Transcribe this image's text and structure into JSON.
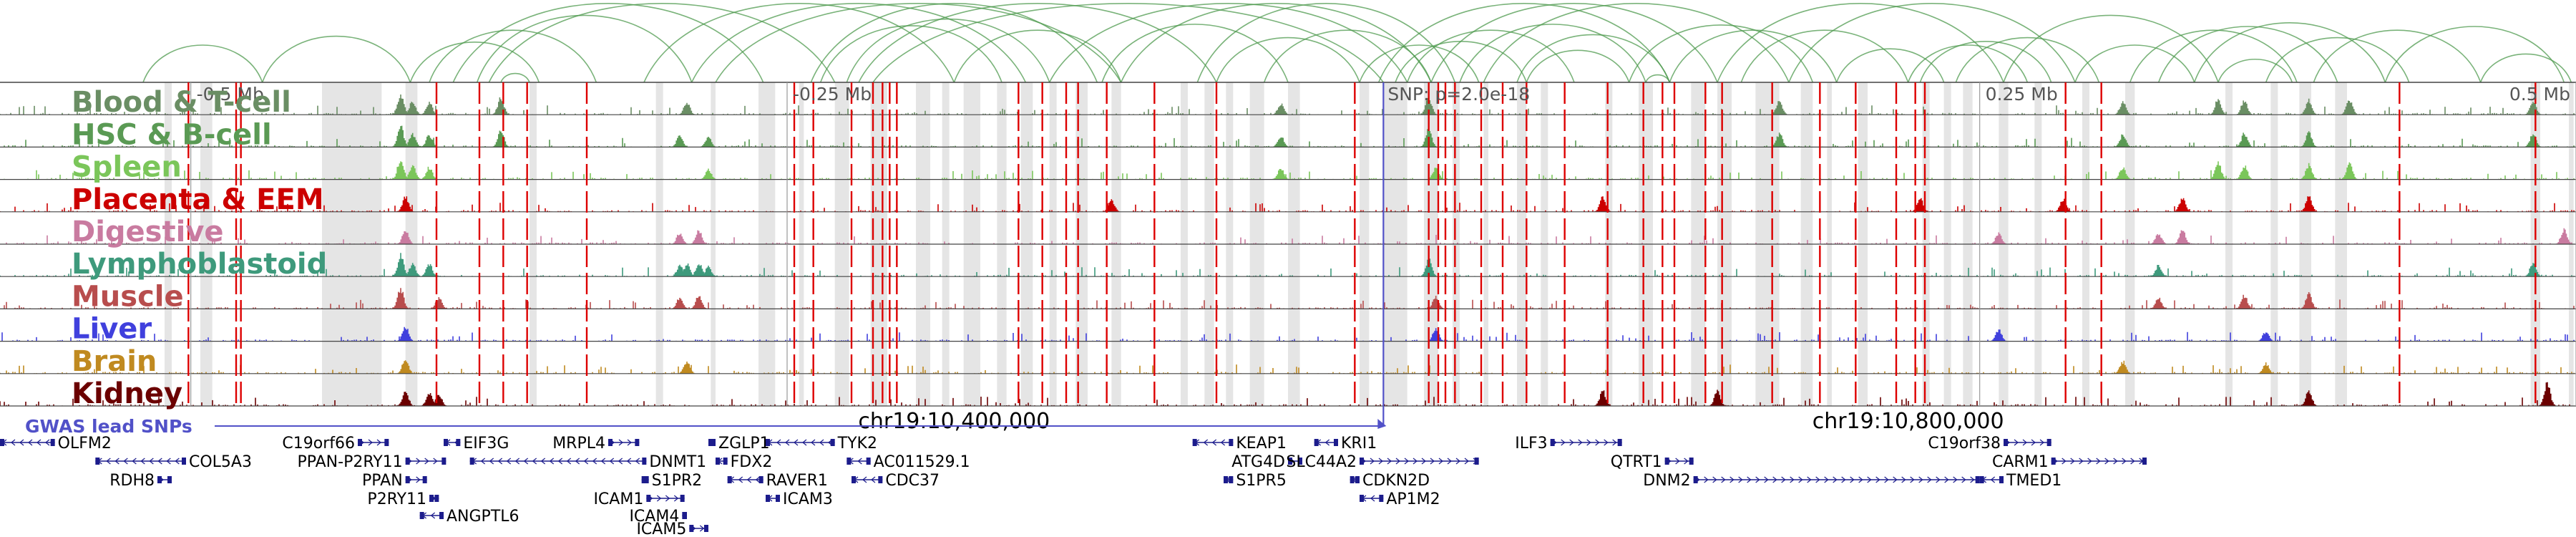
{
  "chart_data": {
    "type": "genome-browser",
    "region": {
      "chrom": "chr19",
      "start": 10000000,
      "end": 11080000
    },
    "center": 10580000,
    "coordinate_labels": [
      {
        "label": "chr19:10,400,000",
        "pos": 10400000
      },
      {
        "label": "chr19:10,800,000",
        "pos": 10800000
      }
    ],
    "ticks": [
      {
        "label": "-0.5 Mb",
        "pos": 10080000
      },
      {
        "label": "-0.25 Mb",
        "pos": 10330000
      },
      {
        "label": "0.25 Mb",
        "pos": 10830000
      },
      {
        "label": "0.5 Mb",
        "pos": 11080000
      }
    ],
    "lead_snp": {
      "label": "SNP: p=2.0e-18",
      "pos": 10580000
    },
    "gwas_label": "GWAS lead SNPs",
    "tracks": [
      {
        "name": "Blood & T-cell",
        "color": "#6a8e64"
      },
      {
        "name": "HSC & B-cell",
        "color": "#5a9a54"
      },
      {
        "name": "Spleen",
        "color": "#7bc65a"
      },
      {
        "name": "Placenta & EEM",
        "color": "#cc0000"
      },
      {
        "name": "Digestive",
        "color": "#c97ba0"
      },
      {
        "name": "Lymphoblastoid",
        "color": "#3e9a7c"
      },
      {
        "name": "Muscle",
        "color": "#b84d4d"
      },
      {
        "name": "Liver",
        "color": "#4040dd"
      },
      {
        "name": "Brain",
        "color": "#c08a20"
      },
      {
        "name": "Kidney",
        "color": "#6b0000"
      }
    ],
    "highlight_regions": [
      [
        10069000,
        10072000
      ],
      [
        10084000,
        10089000
      ],
      [
        10135000,
        10160000
      ],
      [
        10170000,
        10175000
      ],
      [
        10222000,
        10225000
      ],
      [
        10275000,
        10278000
      ],
      [
        10298000,
        10300000
      ],
      [
        10318000,
        10325000
      ],
      [
        10335000,
        10337000
      ],
      [
        10350000,
        10356000
      ],
      [
        10365000,
        10372000
      ],
      [
        10384000,
        10390000
      ],
      [
        10395000,
        10398000
      ],
      [
        10404000,
        10411000
      ],
      [
        10418000,
        10422000
      ],
      [
        10428000,
        10433000
      ],
      [
        10440000,
        10443000
      ],
      [
        10451000,
        10456000
      ],
      [
        10466000,
        10470000
      ],
      [
        10495000,
        10498000
      ],
      [
        10505000,
        10509000
      ],
      [
        10514000,
        10517000
      ],
      [
        10524000,
        10530000
      ],
      [
        10540000,
        10545000
      ],
      [
        10570000,
        10574000
      ],
      [
        10580000,
        10590000
      ],
      [
        10597000,
        10603000
      ],
      [
        10609000,
        10612000
      ],
      [
        10622000,
        10624000
      ],
      [
        10636000,
        10640000
      ],
      [
        10646000,
        10649000
      ],
      [
        10673000,
        10676000
      ],
      [
        10687000,
        10693000
      ],
      [
        10709000,
        10715000
      ],
      [
        10720000,
        10726000
      ],
      [
        10736000,
        10746000
      ],
      [
        10755000,
        10760000
      ],
      [
        10766000,
        10768000
      ],
      [
        10779000,
        10783000
      ],
      [
        10806000,
        10809000
      ],
      [
        10815000,
        10818000
      ],
      [
        10823000,
        10827000
      ],
      [
        10838000,
        10842000
      ],
      [
        10853000,
        10856000
      ],
      [
        10873000,
        10876000
      ],
      [
        10891000,
        10895000
      ],
      [
        10933000,
        10936000
      ],
      [
        10952000,
        10955000
      ],
      [
        10964000,
        10969000
      ],
      [
        10979000,
        10984000
      ],
      [
        11061000,
        11065000
      ],
      [
        11077000,
        11079000
      ]
    ],
    "red_lines": [
      10079000,
      10099000,
      10101000,
      10183000,
      10201000,
      10211000,
      10221000,
      10246000,
      10333000,
      10341000,
      10357000,
      10366000,
      10370000,
      10373000,
      10376000,
      10427000,
      10437000,
      10447000,
      10452000,
      10464000,
      10484000,
      10510000,
      10568000,
      10599000,
      10603000,
      10606000,
      10610000,
      10621000,
      10630000,
      10640000,
      10656000,
      10674000,
      10689000,
      10697000,
      10702000,
      10715000,
      10722000,
      10743000,
      10763000,
      10778000,
      10795000,
      10803000,
      10807000,
      10866000,
      10881000,
      11006000,
      11063000
    ],
    "loops": [
      [
        10060000,
        10110000
      ],
      [
        10110000,
        10172000
      ],
      [
        10172000,
        10226000
      ],
      [
        10180000,
        10250000
      ],
      [
        10190000,
        10320000
      ],
      [
        10200000,
        10290000
      ],
      [
        10205000,
        10350000
      ],
      [
        10210000,
        10222000
      ],
      [
        10270000,
        10400000
      ],
      [
        10290000,
        10430000
      ],
      [
        10300000,
        10470000
      ],
      [
        10340000,
        10460000
      ],
      [
        10344000,
        10420000
      ],
      [
        10355000,
        10440000
      ],
      [
        10360000,
        10510000
      ],
      [
        10366000,
        10580000
      ],
      [
        10400000,
        10470000
      ],
      [
        10440000,
        10590000
      ],
      [
        10462000,
        10540000
      ],
      [
        10470000,
        10600000
      ],
      [
        10502000,
        10610000
      ],
      [
        10510000,
        10570000
      ],
      [
        10530000,
        10600000
      ],
      [
        10570000,
        10620000
      ],
      [
        10578000,
        10700000
      ],
      [
        10585000,
        10640000
      ],
      [
        10590000,
        10660000
      ],
      [
        10600000,
        10720000
      ],
      [
        10612000,
        10690000
      ],
      [
        10622000,
        10750000
      ],
      [
        10636000,
        10700000
      ],
      [
        10640000,
        10683000
      ],
      [
        10683000,
        10760000
      ],
      [
        10690000,
        10700000
      ],
      [
        10700000,
        10770000
      ],
      [
        10720000,
        10840000
      ],
      [
        10730000,
        10800000
      ],
      [
        10750000,
        10870000
      ],
      [
        10770000,
        10815000
      ],
      [
        10800000,
        10850000
      ],
      [
        10805000,
        10860000
      ],
      [
        10820000,
        10880000
      ],
      [
        10840000,
        10930000
      ],
      [
        10870000,
        10920000
      ],
      [
        10893000,
        10963000
      ],
      [
        10905000,
        10980000
      ],
      [
        10920000,
        11000000
      ],
      [
        10930000,
        10961000
      ],
      [
        10950000,
        11010000
      ],
      [
        10970000,
        11040000
      ],
      [
        11000000,
        11075000
      ],
      [
        11040000,
        11078000
      ]
    ],
    "peaks": [
      {
        "pos": 10168000,
        "height": 0.85,
        "tracks": [
          0,
          1,
          2,
          5,
          6
        ]
      },
      {
        "pos": 10170000,
        "height": 0.6,
        "tracks": [
          3,
          4,
          7,
          8,
          9
        ]
      },
      {
        "pos": 10173000,
        "height": 0.55,
        "tracks": [
          0,
          1,
          2,
          5
        ]
      },
      {
        "pos": 10180000,
        "height": 0.5,
        "tracks": [
          0,
          1,
          2,
          5,
          9
        ]
      },
      {
        "pos": 10184000,
        "height": 0.45,
        "tracks": [
          6,
          9
        ]
      },
      {
        "pos": 10210000,
        "height": 0.7,
        "tracks": [
          0,
          1
        ]
      },
      {
        "pos": 10285000,
        "height": 0.45,
        "tracks": [
          1,
          4,
          5,
          6
        ]
      },
      {
        "pos": 10288000,
        "height": 0.5,
        "tracks": [
          0,
          5,
          8
        ]
      },
      {
        "pos": 10293000,
        "height": 0.55,
        "tracks": [
          4,
          5,
          6
        ]
      },
      {
        "pos": 10297000,
        "height": 0.4,
        "tracks": [
          1,
          2,
          5
        ]
      },
      {
        "pos": 10466000,
        "height": 0.5,
        "tracks": [
          3
        ]
      },
      {
        "pos": 10537000,
        "height": 0.45,
        "tracks": [
          0,
          1,
          2
        ]
      },
      {
        "pos": 10599000,
        "height": 0.7,
        "tracks": [
          0,
          1,
          5
        ]
      },
      {
        "pos": 10602000,
        "height": 0.5,
        "tracks": [
          2,
          6,
          7
        ]
      },
      {
        "pos": 10672000,
        "height": 0.6,
        "tracks": [
          3,
          9
        ]
      },
      {
        "pos": 10720000,
        "height": 0.6,
        "tracks": [
          9
        ]
      },
      {
        "pos": 10746000,
        "height": 0.55,
        "tracks": [
          0,
          1
        ]
      },
      {
        "pos": 10805000,
        "height": 0.55,
        "tracks": [
          3
        ]
      },
      {
        "pos": 10838000,
        "height": 0.45,
        "tracks": [
          4,
          7
        ]
      },
      {
        "pos": 10865000,
        "height": 0.5,
        "tracks": [
          3
        ]
      },
      {
        "pos": 10890000,
        "height": 0.5,
        "tracks": [
          0,
          1,
          2,
          8
        ]
      },
      {
        "pos": 10905000,
        "height": 0.45,
        "tracks": [
          4,
          5,
          6
        ]
      },
      {
        "pos": 10915000,
        "height": 0.55,
        "tracks": [
          3,
          4
        ]
      },
      {
        "pos": 10930000,
        "height": 0.65,
        "tracks": [
          0,
          2
        ]
      },
      {
        "pos": 10941000,
        "height": 0.55,
        "tracks": [
          0,
          1,
          2,
          6
        ]
      },
      {
        "pos": 10950000,
        "height": 0.4,
        "tracks": [
          7,
          8
        ]
      },
      {
        "pos": 10968000,
        "height": 0.6,
        "tracks": [
          0,
          1,
          2,
          3,
          6,
          9
        ]
      },
      {
        "pos": 10985000,
        "height": 0.65,
        "tracks": [
          0,
          2
        ]
      },
      {
        "pos": 11062000,
        "height": 0.55,
        "tracks": [
          0,
          1,
          5
        ]
      },
      {
        "pos": 11068000,
        "height": 0.9,
        "tracks": [
          9
        ]
      },
      {
        "pos": 11075000,
        "height": 0.6,
        "tracks": [
          4
        ]
      }
    ],
    "genes": [
      {
        "name": "OLFM2",
        "start": 10000000,
        "end": 10023000,
        "strand": "-",
        "row": 0
      },
      {
        "name": "COL5A3",
        "start": 10040000,
        "end": 10078000,
        "strand": "-",
        "row": 1
      },
      {
        "name": "RDH8",
        "start": 10066000,
        "end": 10072000,
        "strand": "+",
        "row": 2
      },
      {
        "name": "C19orf66",
        "start": 10150000,
        "end": 10163000,
        "strand": "+",
        "row": 0
      },
      {
        "name": "PPAN-P2RY11",
        "start": 10170000,
        "end": 10187000,
        "strand": "+",
        "row": 1
      },
      {
        "name": "PPAN",
        "start": 10170000,
        "end": 10179000,
        "strand": "+",
        "row": 2
      },
      {
        "name": "P2RY11",
        "start": 10180000,
        "end": 10184000,
        "strand": "+",
        "row": 3
      },
      {
        "name": "ANGPTL6",
        "start": 10176000,
        "end": 10186000,
        "strand": "-",
        "row": 4
      },
      {
        "name": "EIF3G",
        "start": 10186000,
        "end": 10193000,
        "strand": "-",
        "row": 0
      },
      {
        "name": "MRPL4",
        "start": 10255000,
        "end": 10268000,
        "strand": "+",
        "row": 0
      },
      {
        "name": "DNMT1",
        "start": 10197000,
        "end": 10271000,
        "strand": "-",
        "row": 1
      },
      {
        "name": "S1PR2",
        "start": 10269000,
        "end": 10272000,
        "strand": "-",
        "row": 2
      },
      {
        "name": "ICAM1",
        "start": 10271000,
        "end": 10287000,
        "strand": "+",
        "row": 3
      },
      {
        "name": "ICAM4",
        "start": 10286000,
        "end": 10288000,
        "strand": "+",
        "row": 4
      },
      {
        "name": "ICAM5",
        "start": 10289000,
        "end": 10297000,
        "strand": "+",
        "row": 5
      },
      {
        "name": "ZGLP1",
        "start": 10297000,
        "end": 10300000,
        "strand": "-",
        "row": 0
      },
      {
        "name": "FDX2",
        "start": 10300000,
        "end": 10305000,
        "strand": "-",
        "row": 1
      },
      {
        "name": "RAVER1",
        "start": 10305000,
        "end": 10320000,
        "strand": "-",
        "row": 2
      },
      {
        "name": "ICAM3",
        "start": 10321000,
        "end": 10327000,
        "strand": "-",
        "row": 3
      },
      {
        "name": "TYK2",
        "start": 10321000,
        "end": 10350000,
        "strand": "-",
        "row": 0
      },
      {
        "name": "AC011529.1",
        "start": 10355000,
        "end": 10365000,
        "strand": "-",
        "row": 1
      },
      {
        "name": "CDC37",
        "start": 10357000,
        "end": 10370000,
        "strand": "-",
        "row": 2
      },
      {
        "name": "KEAP1",
        "start": 10500000,
        "end": 10517000,
        "strand": "-",
        "row": 0
      },
      {
        "name": "ATG4D",
        "start": 10540000,
        "end": 10546000,
        "strand": "+",
        "row": 1
      },
      {
        "name": "S1PR5",
        "start": 10513000,
        "end": 10517000,
        "strand": "-",
        "row": 2
      },
      {
        "name": "KRI1",
        "start": 10551000,
        "end": 10561000,
        "strand": "-",
        "row": 0
      },
      {
        "name": "CDKN2D",
        "start": 10566000,
        "end": 10570000,
        "strand": "-",
        "row": 2
      },
      {
        "name": "SLC44A2",
        "start": 10570000,
        "end": 10620000,
        "strand": "+",
        "row": 1
      },
      {
        "name": "AP1M2",
        "start": 10570000,
        "end": 10580000,
        "strand": "-",
        "row": 3
      },
      {
        "name": "ILF3",
        "start": 10650000,
        "end": 10680000,
        "strand": "+",
        "row": 0
      },
      {
        "name": "QTRT1",
        "start": 10698000,
        "end": 10710000,
        "strand": "+",
        "row": 1
      },
      {
        "name": "DNM2",
        "start": 10710000,
        "end": 10830000,
        "strand": "+",
        "row": 2
      },
      {
        "name": "TMED1",
        "start": 10830000,
        "end": 10840000,
        "strand": "-",
        "row": 2
      },
      {
        "name": "C19orf38",
        "start": 10840000,
        "end": 10860000,
        "strand": "+",
        "row": 0
      },
      {
        "name": "CARM1",
        "start": 10860000,
        "end": 10900000,
        "strand": "+",
        "row": 1
      }
    ]
  }
}
